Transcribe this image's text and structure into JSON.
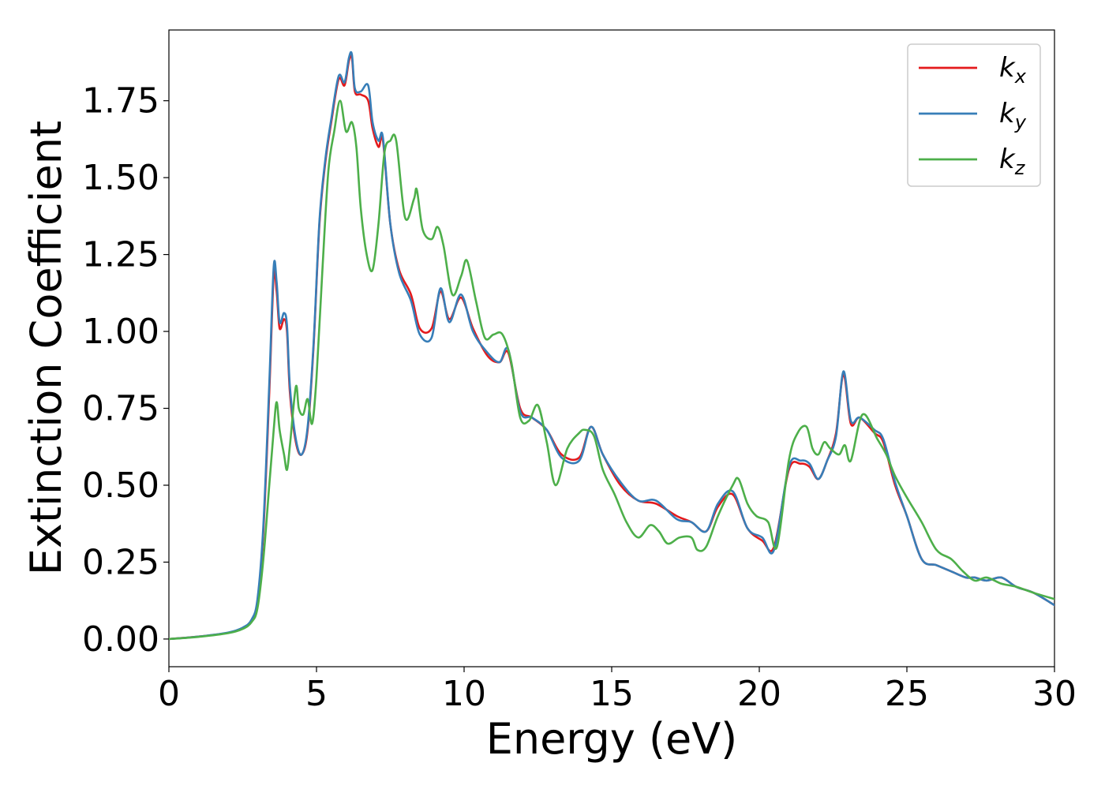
{
  "chart_data": {
    "type": "line",
    "xlabel": "Energy (eV)",
    "ylabel": "Extinction Coefficient",
    "xlim": [
      0,
      30
    ],
    "ylim": [
      -0.09,
      1.98
    ],
    "xticks": [
      "0",
      "5",
      "10",
      "15",
      "20",
      "25",
      "30"
    ],
    "yticks": [
      "0.00",
      "0.25",
      "0.50",
      "0.75",
      "1.00",
      "1.25",
      "1.50",
      "1.75"
    ],
    "grid": false,
    "legend_position": "top-right",
    "series": [
      {
        "name": "k",
        "subscript": "x",
        "color": "#e41a1c",
        "x": [
          0,
          1,
          2,
          2.5,
          2.8,
          3.0,
          3.2,
          3.4,
          3.55,
          3.65,
          3.75,
          3.9,
          4.0,
          4.1,
          4.3,
          4.5,
          4.7,
          4.9,
          5.1,
          5.3,
          5.5,
          5.75,
          5.95,
          6.1,
          6.2,
          6.3,
          6.5,
          6.75,
          6.9,
          7.1,
          7.25,
          7.5,
          7.8,
          8.2,
          8.5,
          8.9,
          9.2,
          9.5,
          9.9,
          10.3,
          10.8,
          11.2,
          11.5,
          11.9,
          12.3,
          12.8,
          13.3,
          13.9,
          14.3,
          14.7,
          15.3,
          15.9,
          16.5,
          17.2,
          17.7,
          18.2,
          18.6,
          19.1,
          19.6,
          20.1,
          20.5,
          21.0,
          21.4,
          21.7,
          22.0,
          22.3,
          22.6,
          22.85,
          23.1,
          23.4,
          23.9,
          24.2,
          24.6,
          25.0,
          25.5,
          26.0,
          26.5,
          27.0,
          27.3,
          27.7,
          28.2,
          28.7,
          29.3,
          30.0
        ],
        "values": [
          0.0,
          0.008,
          0.02,
          0.035,
          0.06,
          0.12,
          0.35,
          0.8,
          1.18,
          1.13,
          1.01,
          1.04,
          1.0,
          0.8,
          0.64,
          0.6,
          0.68,
          0.95,
          1.35,
          1.55,
          1.68,
          1.82,
          1.8,
          1.88,
          1.89,
          1.78,
          1.77,
          1.75,
          1.66,
          1.6,
          1.62,
          1.35,
          1.2,
          1.12,
          1.01,
          1.01,
          1.13,
          1.04,
          1.11,
          1.01,
          0.92,
          0.9,
          0.93,
          0.75,
          0.72,
          0.68,
          0.6,
          0.59,
          0.69,
          0.6,
          0.5,
          0.45,
          0.44,
          0.4,
          0.38,
          0.35,
          0.43,
          0.47,
          0.36,
          0.32,
          0.3,
          0.55,
          0.57,
          0.56,
          0.52,
          0.58,
          0.67,
          0.86,
          0.7,
          0.72,
          0.67,
          0.64,
          0.5,
          0.4,
          0.26,
          0.24,
          0.22,
          0.2,
          0.2,
          0.19,
          0.2,
          0.17,
          0.15,
          0.11
        ]
      },
      {
        "name": "k",
        "subscript": "y",
        "color": "#377eb8",
        "x": [
          0,
          1,
          2,
          2.5,
          2.8,
          3.0,
          3.2,
          3.4,
          3.55,
          3.65,
          3.75,
          3.9,
          4.0,
          4.1,
          4.3,
          4.5,
          4.7,
          4.9,
          5.1,
          5.3,
          5.5,
          5.75,
          5.95,
          6.1,
          6.2,
          6.3,
          6.5,
          6.75,
          6.9,
          7.1,
          7.25,
          7.5,
          7.8,
          8.2,
          8.5,
          8.9,
          9.2,
          9.5,
          9.9,
          10.3,
          10.8,
          11.2,
          11.5,
          11.9,
          12.3,
          12.8,
          13.3,
          13.9,
          14.3,
          14.7,
          15.3,
          15.9,
          16.5,
          17.2,
          17.7,
          18.2,
          18.6,
          19.1,
          19.6,
          20.1,
          20.5,
          21.0,
          21.4,
          21.7,
          22.0,
          22.3,
          22.6,
          22.85,
          23.1,
          23.4,
          23.9,
          24.2,
          24.6,
          25.0,
          25.5,
          26.0,
          26.5,
          27.0,
          27.3,
          27.7,
          28.2,
          28.7,
          29.3,
          30.0
        ],
        "values": [
          0.0,
          0.008,
          0.021,
          0.037,
          0.063,
          0.13,
          0.37,
          0.83,
          1.21,
          1.16,
          1.03,
          1.06,
          1.02,
          0.82,
          0.65,
          0.6,
          0.69,
          0.96,
          1.36,
          1.56,
          1.69,
          1.83,
          1.81,
          1.89,
          1.9,
          1.79,
          1.78,
          1.8,
          1.68,
          1.62,
          1.63,
          1.35,
          1.19,
          1.1,
          0.99,
          0.98,
          1.14,
          1.03,
          1.12,
          1.0,
          0.93,
          0.9,
          0.94,
          0.74,
          0.72,
          0.68,
          0.59,
          0.58,
          0.69,
          0.6,
          0.51,
          0.45,
          0.45,
          0.39,
          0.38,
          0.35,
          0.44,
          0.48,
          0.36,
          0.33,
          0.29,
          0.56,
          0.58,
          0.57,
          0.52,
          0.58,
          0.66,
          0.87,
          0.71,
          0.72,
          0.68,
          0.65,
          0.51,
          0.4,
          0.26,
          0.24,
          0.22,
          0.2,
          0.2,
          0.19,
          0.2,
          0.17,
          0.15,
          0.11
        ]
      },
      {
        "name": "k",
        "subscript": "z",
        "color": "#4daf4a",
        "x": [
          0,
          1,
          2,
          2.5,
          2.8,
          3.0,
          3.2,
          3.4,
          3.55,
          3.65,
          3.75,
          3.9,
          4.0,
          4.1,
          4.3,
          4.4,
          4.55,
          4.7,
          4.85,
          5.0,
          5.2,
          5.4,
          5.6,
          5.8,
          6.0,
          6.2,
          6.35,
          6.5,
          6.7,
          6.9,
          7.1,
          7.3,
          7.5,
          7.7,
          8.0,
          8.3,
          8.4,
          8.6,
          8.9,
          9.1,
          9.3,
          9.6,
          9.9,
          10.1,
          10.4,
          10.7,
          11.0,
          11.3,
          11.6,
          11.9,
          12.2,
          12.5,
          12.8,
          13.1,
          13.5,
          13.9,
          14.1,
          14.4,
          14.7,
          15.1,
          15.5,
          15.9,
          16.3,
          16.6,
          16.9,
          17.3,
          17.7,
          17.9,
          18.2,
          18.6,
          19.1,
          19.3,
          19.6,
          19.9,
          20.3,
          20.6,
          21.0,
          21.3,
          21.6,
          21.8,
          22.0,
          22.2,
          22.4,
          22.7,
          22.9,
          23.1,
          23.5,
          24.0,
          24.3,
          24.6,
          25.0,
          25.5,
          26.0,
          26.5,
          26.9,
          27.3,
          27.7,
          28.2,
          28.7,
          29.3,
          30.0
        ],
        "values": [
          0.0,
          0.007,
          0.019,
          0.033,
          0.055,
          0.1,
          0.26,
          0.5,
          0.68,
          0.77,
          0.68,
          0.6,
          0.55,
          0.63,
          0.82,
          0.75,
          0.73,
          0.78,
          0.7,
          0.85,
          1.2,
          1.52,
          1.65,
          1.75,
          1.65,
          1.68,
          1.6,
          1.4,
          1.25,
          1.2,
          1.35,
          1.58,
          1.62,
          1.62,
          1.37,
          1.43,
          1.46,
          1.33,
          1.3,
          1.34,
          1.28,
          1.12,
          1.18,
          1.23,
          1.1,
          0.98,
          0.99,
          0.99,
          0.9,
          0.72,
          0.71,
          0.76,
          0.64,
          0.5,
          0.62,
          0.67,
          0.68,
          0.66,
          0.55,
          0.47,
          0.38,
          0.33,
          0.37,
          0.35,
          0.31,
          0.33,
          0.33,
          0.29,
          0.3,
          0.4,
          0.5,
          0.52,
          0.44,
          0.4,
          0.38,
          0.3,
          0.58,
          0.67,
          0.69,
          0.62,
          0.6,
          0.64,
          0.62,
          0.6,
          0.63,
          0.58,
          0.73,
          0.65,
          0.6,
          0.53,
          0.46,
          0.38,
          0.29,
          0.26,
          0.22,
          0.19,
          0.2,
          0.18,
          0.17,
          0.15,
          0.13
        ]
      }
    ]
  }
}
